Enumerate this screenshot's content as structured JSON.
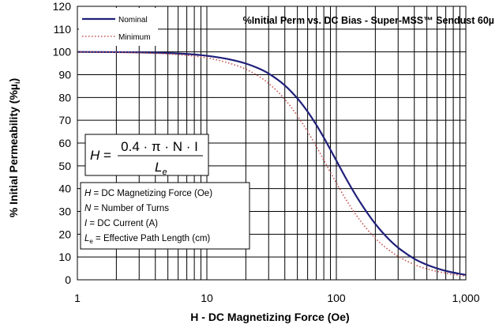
{
  "chart_data": {
    "type": "line",
    "title": "%Initial Perm vs. DC Bias - Super-MSS™ Sendust  60µ",
    "xlabel": "H - DC Magnetizing Force (Oe)",
    "ylabel": "% Initial Permeability (%µ",
    "ylabel_sub": "i",
    "ylabel_close": ")",
    "x_scale": "log",
    "xlim": [
      1,
      1000
    ],
    "ylim": [
      0,
      120
    ],
    "x_ticks": [
      1,
      10,
      100,
      1000
    ],
    "x_tick_labels": [
      "1",
      "10",
      "100",
      "1,000"
    ],
    "y_ticks": [
      0,
      10,
      20,
      30,
      40,
      50,
      60,
      70,
      80,
      90,
      100,
      110,
      120
    ],
    "y_tick_labels": [
      "0",
      "10",
      "20",
      "30",
      "40",
      "50",
      "60",
      "70",
      "80",
      "90",
      "100",
      "110",
      "120"
    ],
    "grid": true,
    "legend_position": "top-left",
    "series": [
      {
        "name": "Nominal",
        "color": "#1f1f7a",
        "style": "solid",
        "x": [
          1,
          2,
          3,
          5,
          7,
          10,
          15,
          20,
          25,
          30,
          40,
          50,
          60,
          70,
          80,
          100,
          120,
          150,
          200,
          250,
          300,
          400,
          500,
          700,
          1000
        ],
        "y": [
          100,
          99.9,
          99.8,
          99.5,
          99.1,
          98.3,
          96.7,
          94.9,
          92.8,
          90.5,
          85.3,
          79.6,
          73.8,
          68.0,
          62.4,
          52.3,
          44.0,
          34.7,
          24.5,
          18.2,
          14.1,
          9.2,
          6.6,
          3.9,
          2.1
        ]
      },
      {
        "name": "Minimum",
        "color": "#c0504d",
        "style": "dotted",
        "x": [
          1,
          2,
          3,
          5,
          7,
          10,
          15,
          20,
          25,
          30,
          40,
          50,
          60,
          70,
          80,
          100,
          120,
          150,
          200,
          250,
          300,
          400,
          500,
          700,
          1000
        ],
        "y": [
          99.9,
          99.8,
          99.6,
          99.1,
          98.5,
          97.4,
          95.0,
          92.4,
          89.4,
          86.2,
          79.2,
          72.0,
          65.0,
          58.5,
          52.5,
          42.5,
          34.8,
          26.6,
          18.2,
          13.4,
          10.3,
          6.7,
          4.8,
          2.9,
          1.6
        ]
      }
    ],
    "formula": {
      "lhs": "H",
      "equals": "=",
      "numerator": "0.4 · π · N · I",
      "denominator_main": "L",
      "denominator_sub": "e"
    },
    "definitions": [
      {
        "symbol": "H",
        "sub": "",
        "text": " = DC Magnetizing Force (Oe)"
      },
      {
        "symbol": "N",
        "sub": "",
        "text": " = Number of Turns"
      },
      {
        "symbol": "I",
        "sub": "",
        "text": " = DC Current (A)"
      },
      {
        "symbol": "L",
        "sub": "e",
        "text": " = Effective Path Length (cm)"
      }
    ]
  }
}
